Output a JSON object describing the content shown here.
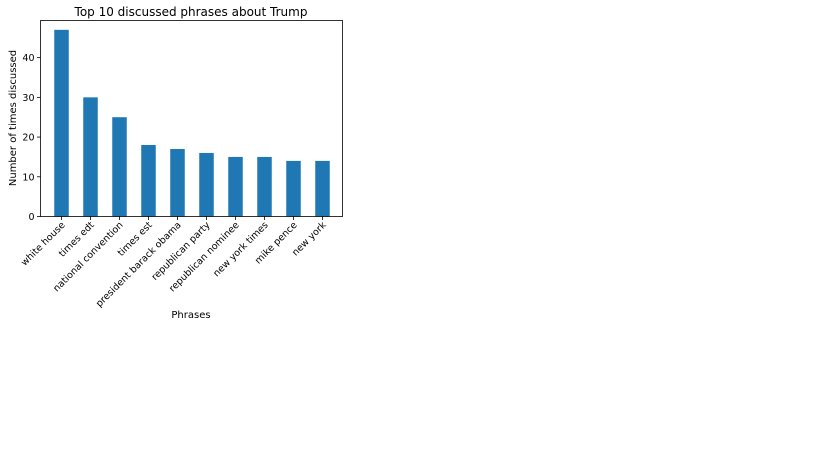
{
  "chart_data": {
    "type": "bar",
    "title": "Top 10 discussed phrases about Trump",
    "xlabel": "Phrases",
    "ylabel": "Number of times discussed",
    "categories": [
      "white house",
      "times edt",
      "national convention",
      "times est",
      "president barack obama",
      "republican party",
      "republican nominee",
      "new york times",
      "mike pence",
      "new york"
    ],
    "values": [
      47,
      30,
      25,
      18,
      17,
      16,
      15,
      15,
      14,
      14
    ],
    "ylim": [
      0,
      49.35
    ],
    "yticks": [
      0,
      10,
      20,
      30,
      40
    ],
    "bar_color": "#1f77b4",
    "grid": false,
    "legend": "none"
  }
}
